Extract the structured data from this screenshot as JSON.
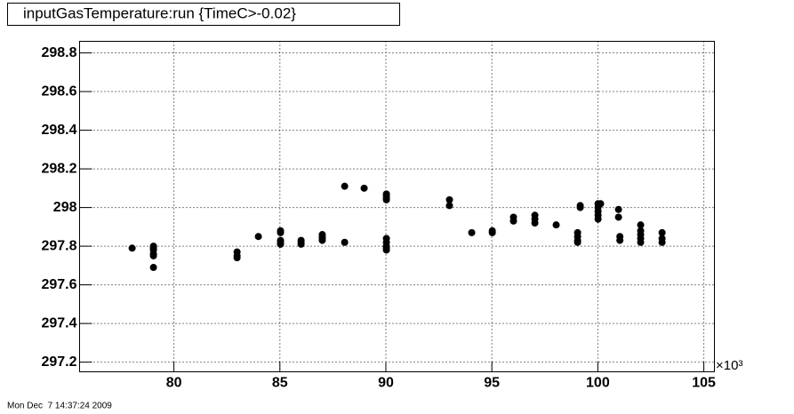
{
  "chart_data": {
    "type": "scatter",
    "title": "inputGasTemperature:run {TimeC>-0.02}",
    "x_multiplier_label": "×10³",
    "timestamp": "Mon Dec  7 14:37:24 2009",
    "grid": true,
    "xlim": [
      75550,
      105500
    ],
    "ylim": [
      297.15,
      298.86
    ],
    "xticks": [
      {
        "value": 80000,
        "label": "80"
      },
      {
        "value": 85000,
        "label": "85"
      },
      {
        "value": 90000,
        "label": "90"
      },
      {
        "value": 95000,
        "label": "95"
      },
      {
        "value": 100000,
        "label": "100"
      },
      {
        "value": 105000,
        "label": "105"
      }
    ],
    "yticks": [
      297.2,
      297.4,
      297.6,
      297.8,
      298,
      298.2,
      298.4,
      298.6,
      298.8
    ],
    "series": [
      {
        "color": "#000000",
        "x": [
          78030,
          79035,
          79035,
          79035,
          79035,
          79035,
          79035,
          82980,
          82980,
          82980,
          83985,
          85030,
          85030,
          85030,
          85030,
          85030,
          86000,
          86000,
          86000,
          87000,
          87000,
          87000,
          87000,
          88055,
          88055,
          88975,
          90025,
          90025,
          90025,
          90025,
          90025,
          90025,
          90025,
          90025,
          90025,
          93000,
          93000,
          94050,
          95020,
          95020,
          96020,
          96020,
          97030,
          97030,
          97030,
          98035,
          99045,
          99045,
          99045,
          99045,
          99170,
          99170,
          100010,
          100010,
          100010,
          100010,
          100010,
          100130,
          100975,
          100975,
          101040,
          101040,
          102020,
          102020,
          102020,
          102020,
          102020,
          103030,
          103030,
          103030
        ],
        "values": [
          297.79,
          297.8,
          297.79,
          297.78,
          297.76,
          297.75,
          297.69,
          297.77,
          297.75,
          297.74,
          297.85,
          297.88,
          297.87,
          297.83,
          297.82,
          297.81,
          297.83,
          297.82,
          297.81,
          297.86,
          297.85,
          297.84,
          297.83,
          297.82,
          298.11,
          298.1,
          297.84,
          297.82,
          297.8,
          297.79,
          297.78,
          298.07,
          298.06,
          298.05,
          298.04,
          298.04,
          298.01,
          297.87,
          297.88,
          297.87,
          297.95,
          297.93,
          297.96,
          297.94,
          297.92,
          297.91,
          297.87,
          297.85,
          297.83,
          297.82,
          298.01,
          298.0,
          298.02,
          298.0,
          297.98,
          297.96,
          297.94,
          298.02,
          297.99,
          297.95,
          297.85,
          297.83,
          297.91,
          297.88,
          297.86,
          297.84,
          297.82,
          297.87,
          297.84,
          297.82
        ]
      }
    ]
  }
}
